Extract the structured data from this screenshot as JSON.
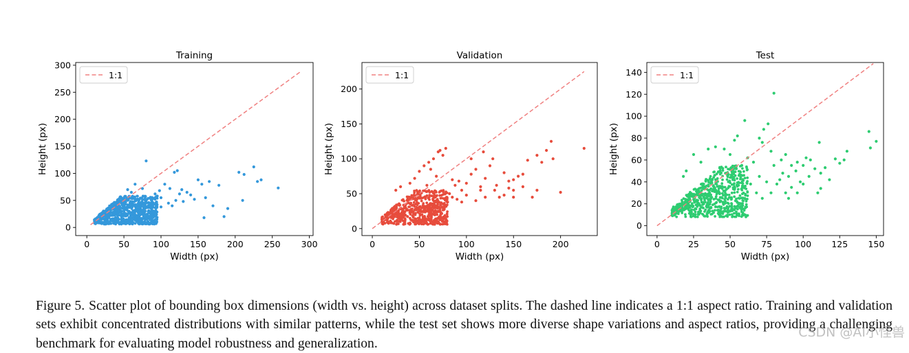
{
  "caption": {
    "label": "Figure 5.",
    "text": "Scatter plot of bounding box dimensions (width vs. height) across dataset splits. The dashed line indicates a 1:1 aspect ratio. Training and validation sets exhibit concentrated distributions with similar patterns, while the test set shows more diverse shape variations and aspect ratios, providing a challenging benchmark for evaluating model robustness and generalization."
  },
  "watermark": "CSDN @AI小怪兽",
  "colors": {
    "training": "#3498db",
    "validation": "#e74c3c",
    "test": "#2ecc71",
    "reference_line": "#f08080"
  },
  "chart_data": [
    {
      "type": "scatter",
      "title": "Training",
      "xlabel": "Width (px)",
      "ylabel": "Height (px)",
      "xlim": [
        -15,
        305
      ],
      "ylim": [
        -15,
        305
      ],
      "xticks": [
        0,
        50,
        100,
        150,
        200,
        250,
        300
      ],
      "yticks": [
        0,
        50,
        100,
        150,
        200,
        250,
        300
      ],
      "legend": {
        "position": "top-left",
        "entries": [
          "1:1"
        ]
      },
      "grid": false,
      "color": "#3498db",
      "reference_line": {
        "label": "1:1",
        "from": [
          5,
          5
        ],
        "to": [
          288,
          288
        ]
      },
      "dense_region": {
        "x_range": [
          10,
          95
        ],
        "y_range": [
          6,
          58
        ],
        "count": 900
      },
      "points": [
        [
          80,
          123
        ],
        [
          122,
          105
        ],
        [
          118,
          102
        ],
        [
          105,
          80
        ],
        [
          112,
          72
        ],
        [
          128,
          70
        ],
        [
          135,
          65
        ],
        [
          150,
          88
        ],
        [
          165,
          85
        ],
        [
          155,
          80
        ],
        [
          178,
          78
        ],
        [
          205,
          102
        ],
        [
          225,
          112
        ],
        [
          212,
          98
        ],
        [
          235,
          88
        ],
        [
          230,
          85
        ],
        [
          258,
          73
        ],
        [
          140,
          60
        ],
        [
          160,
          55
        ],
        [
          120,
          50
        ],
        [
          145,
          52
        ],
        [
          170,
          40
        ],
        [
          190,
          35
        ],
        [
          210,
          50
        ],
        [
          185,
          20
        ],
        [
          158,
          18
        ],
        [
          110,
          45
        ],
        [
          100,
          55
        ],
        [
          92,
          62
        ],
        [
          98,
          68
        ],
        [
          75,
          72
        ],
        [
          60,
          65
        ],
        [
          55,
          70
        ],
        [
          130,
          48
        ],
        [
          115,
          40
        ],
        [
          100,
          38
        ],
        [
          125,
          62
        ],
        [
          65,
          80
        ],
        [
          95,
          58
        ],
        [
          88,
          55
        ]
      ]
    },
    {
      "type": "scatter",
      "title": "Validation",
      "xlabel": "Width (px)",
      "ylabel": "Height (px)",
      "xlim": [
        -11,
        239
      ],
      "ylim": [
        -10,
        238
      ],
      "xticks": [
        0,
        50,
        100,
        150,
        200
      ],
      "yticks": [
        0,
        50,
        100,
        150,
        200
      ],
      "legend": {
        "position": "top-left",
        "entries": [
          "1:1"
        ]
      },
      "grid": false,
      "color": "#e74c3c",
      "reference_line": {
        "label": "1:1",
        "from": [
          0,
          0
        ],
        "to": [
          225,
          225
        ]
      },
      "dense_region": {
        "x_range": [
          10,
          80
        ],
        "y_range": [
          6,
          55
        ],
        "count": 650
      },
      "points": [
        [
          225,
          115
        ],
        [
          190,
          125
        ],
        [
          185,
          112
        ],
        [
          192,
          100
        ],
        [
          175,
          105
        ],
        [
          180,
          95
        ],
        [
          165,
          98
        ],
        [
          200,
          52
        ],
        [
          175,
          55
        ],
        [
          160,
          60
        ],
        [
          150,
          70
        ],
        [
          155,
          75
        ],
        [
          145,
          68
        ],
        [
          140,
          80
        ],
        [
          130,
          55
        ],
        [
          125,
          90
        ],
        [
          128,
          100
        ],
        [
          120,
          72
        ],
        [
          115,
          60
        ],
        [
          110,
          85
        ],
        [
          105,
          78
        ],
        [
          100,
          65
        ],
        [
          95,
          55
        ],
        [
          88,
          62
        ],
        [
          85,
          70
        ],
        [
          82,
          50
        ],
        [
          75,
          105
        ],
        [
          70,
          110
        ],
        [
          65,
          100
        ],
        [
          60,
          95
        ],
        [
          78,
          115
        ],
        [
          72,
          112
        ],
        [
          55,
          90
        ],
        [
          50,
          82
        ],
        [
          45,
          72
        ],
        [
          40,
          65
        ],
        [
          30,
          60
        ],
        [
          25,
          55
        ],
        [
          90,
          42
        ],
        [
          100,
          48
        ],
        [
          110,
          40
        ],
        [
          120,
          45
        ],
        [
          135,
          45
        ],
        [
          170,
          45
        ],
        [
          150,
          55
        ],
        [
          140,
          48
        ],
        [
          160,
          78
        ],
        [
          150,
          45
        ],
        [
          115,
          55
        ],
        [
          95,
          38
        ],
        [
          85,
          45
        ],
        [
          80,
          38
        ],
        [
          92,
          68
        ],
        [
          68,
          75
        ],
        [
          58,
          62
        ],
        [
          62,
          85
        ],
        [
          105,
          100
        ],
        [
          118,
          110
        ],
        [
          132,
          62
        ],
        [
          145,
          58
        ]
      ]
    },
    {
      "type": "scatter",
      "title": "Test",
      "xlabel": "Width (px)",
      "ylabel": "Height (px)",
      "xlim": [
        -7,
        155
      ],
      "ylim": [
        -9,
        149
      ],
      "xticks": [
        0,
        25,
        50,
        75,
        100,
        125,
        150
      ],
      "yticks": [
        0,
        20,
        40,
        60,
        80,
        100,
        120,
        140
      ],
      "legend": {
        "position": "top-left",
        "entries": [
          "1:1"
        ]
      },
      "grid": false,
      "color": "#2ecc71",
      "reference_line": {
        "label": "1:1",
        "from": [
          0,
          0
        ],
        "to": [
          148,
          148
        ]
      },
      "dense_region": {
        "x_range": [
          10,
          62
        ],
        "y_range": [
          8,
          55
        ],
        "count": 700
      },
      "points": [
        [
          80,
          121
        ],
        [
          60,
          96
        ],
        [
          76,
          93
        ],
        [
          73,
          88
        ],
        [
          55,
          82
        ],
        [
          53,
          78
        ],
        [
          70,
          80
        ],
        [
          72,
          76
        ],
        [
          145,
          86
        ],
        [
          150,
          77
        ],
        [
          146,
          71
        ],
        [
          111,
          76
        ],
        [
          130,
          68
        ],
        [
          128,
          60
        ],
        [
          125,
          57
        ],
        [
          122,
          61
        ],
        [
          115,
          53
        ],
        [
          105,
          60
        ],
        [
          100,
          55
        ],
        [
          95,
          50
        ],
        [
          90,
          45
        ],
        [
          85,
          60
        ],
        [
          80,
          55
        ],
        [
          78,
          68
        ],
        [
          88,
          65
        ],
        [
          96,
          58
        ],
        [
          102,
          62
        ],
        [
          108,
          52
        ],
        [
          112,
          48
        ],
        [
          110,
          30
        ],
        [
          112,
          34
        ],
        [
          118,
          42
        ],
        [
          98,
          40
        ],
        [
          92,
          35
        ],
        [
          88,
          30
        ],
        [
          84,
          42
        ],
        [
          82,
          38
        ],
        [
          75,
          40
        ],
        [
          70,
          45
        ],
        [
          66,
          58
        ],
        [
          62,
          62
        ],
        [
          58,
          55
        ],
        [
          50,
          65
        ],
        [
          46,
          70
        ],
        [
          40,
          72
        ],
        [
          35,
          70
        ],
        [
          30,
          58
        ],
        [
          25,
          65
        ],
        [
          20,
          50
        ],
        [
          18,
          45
        ],
        [
          104,
          45
        ],
        [
          100,
          38
        ],
        [
          96,
          30
        ],
        [
          90,
          25
        ],
        [
          86,
          48
        ],
        [
          92,
          55
        ],
        [
          68,
          30
        ],
        [
          72,
          25
        ],
        [
          78,
          30
        ],
        [
          64,
          38
        ]
      ]
    }
  ]
}
